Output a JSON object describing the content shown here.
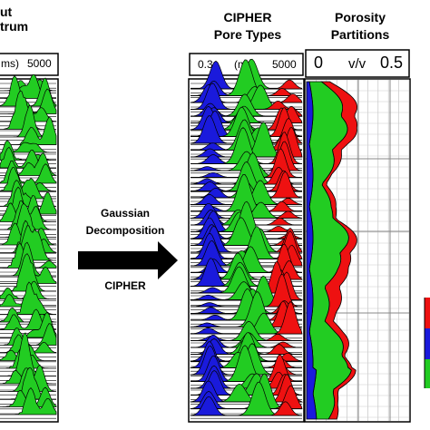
{
  "headers": {
    "left_line1": "ut",
    "left_line2": "trum",
    "cipher_line1": "CIPHER",
    "cipher_line2": "Pore Types",
    "porosity_line1": "Porosity",
    "porosity_line2": "Partitions"
  },
  "scales": {
    "left_unit": "ms)",
    "left_max": "5000",
    "cipher_min": "0.3",
    "cipher_unit": "(ms)",
    "cipher_max": "5000",
    "porosity_min": "0",
    "porosity_unit": "v/v",
    "porosity_max": "0.5"
  },
  "process": {
    "line1": "Gaussian",
    "line2": "Decomposition",
    "method": "CIPHER"
  },
  "colors": {
    "green": "#22cc22",
    "red": "#ee1111",
    "blue": "#1a1adc",
    "outline": "#000000"
  }
}
